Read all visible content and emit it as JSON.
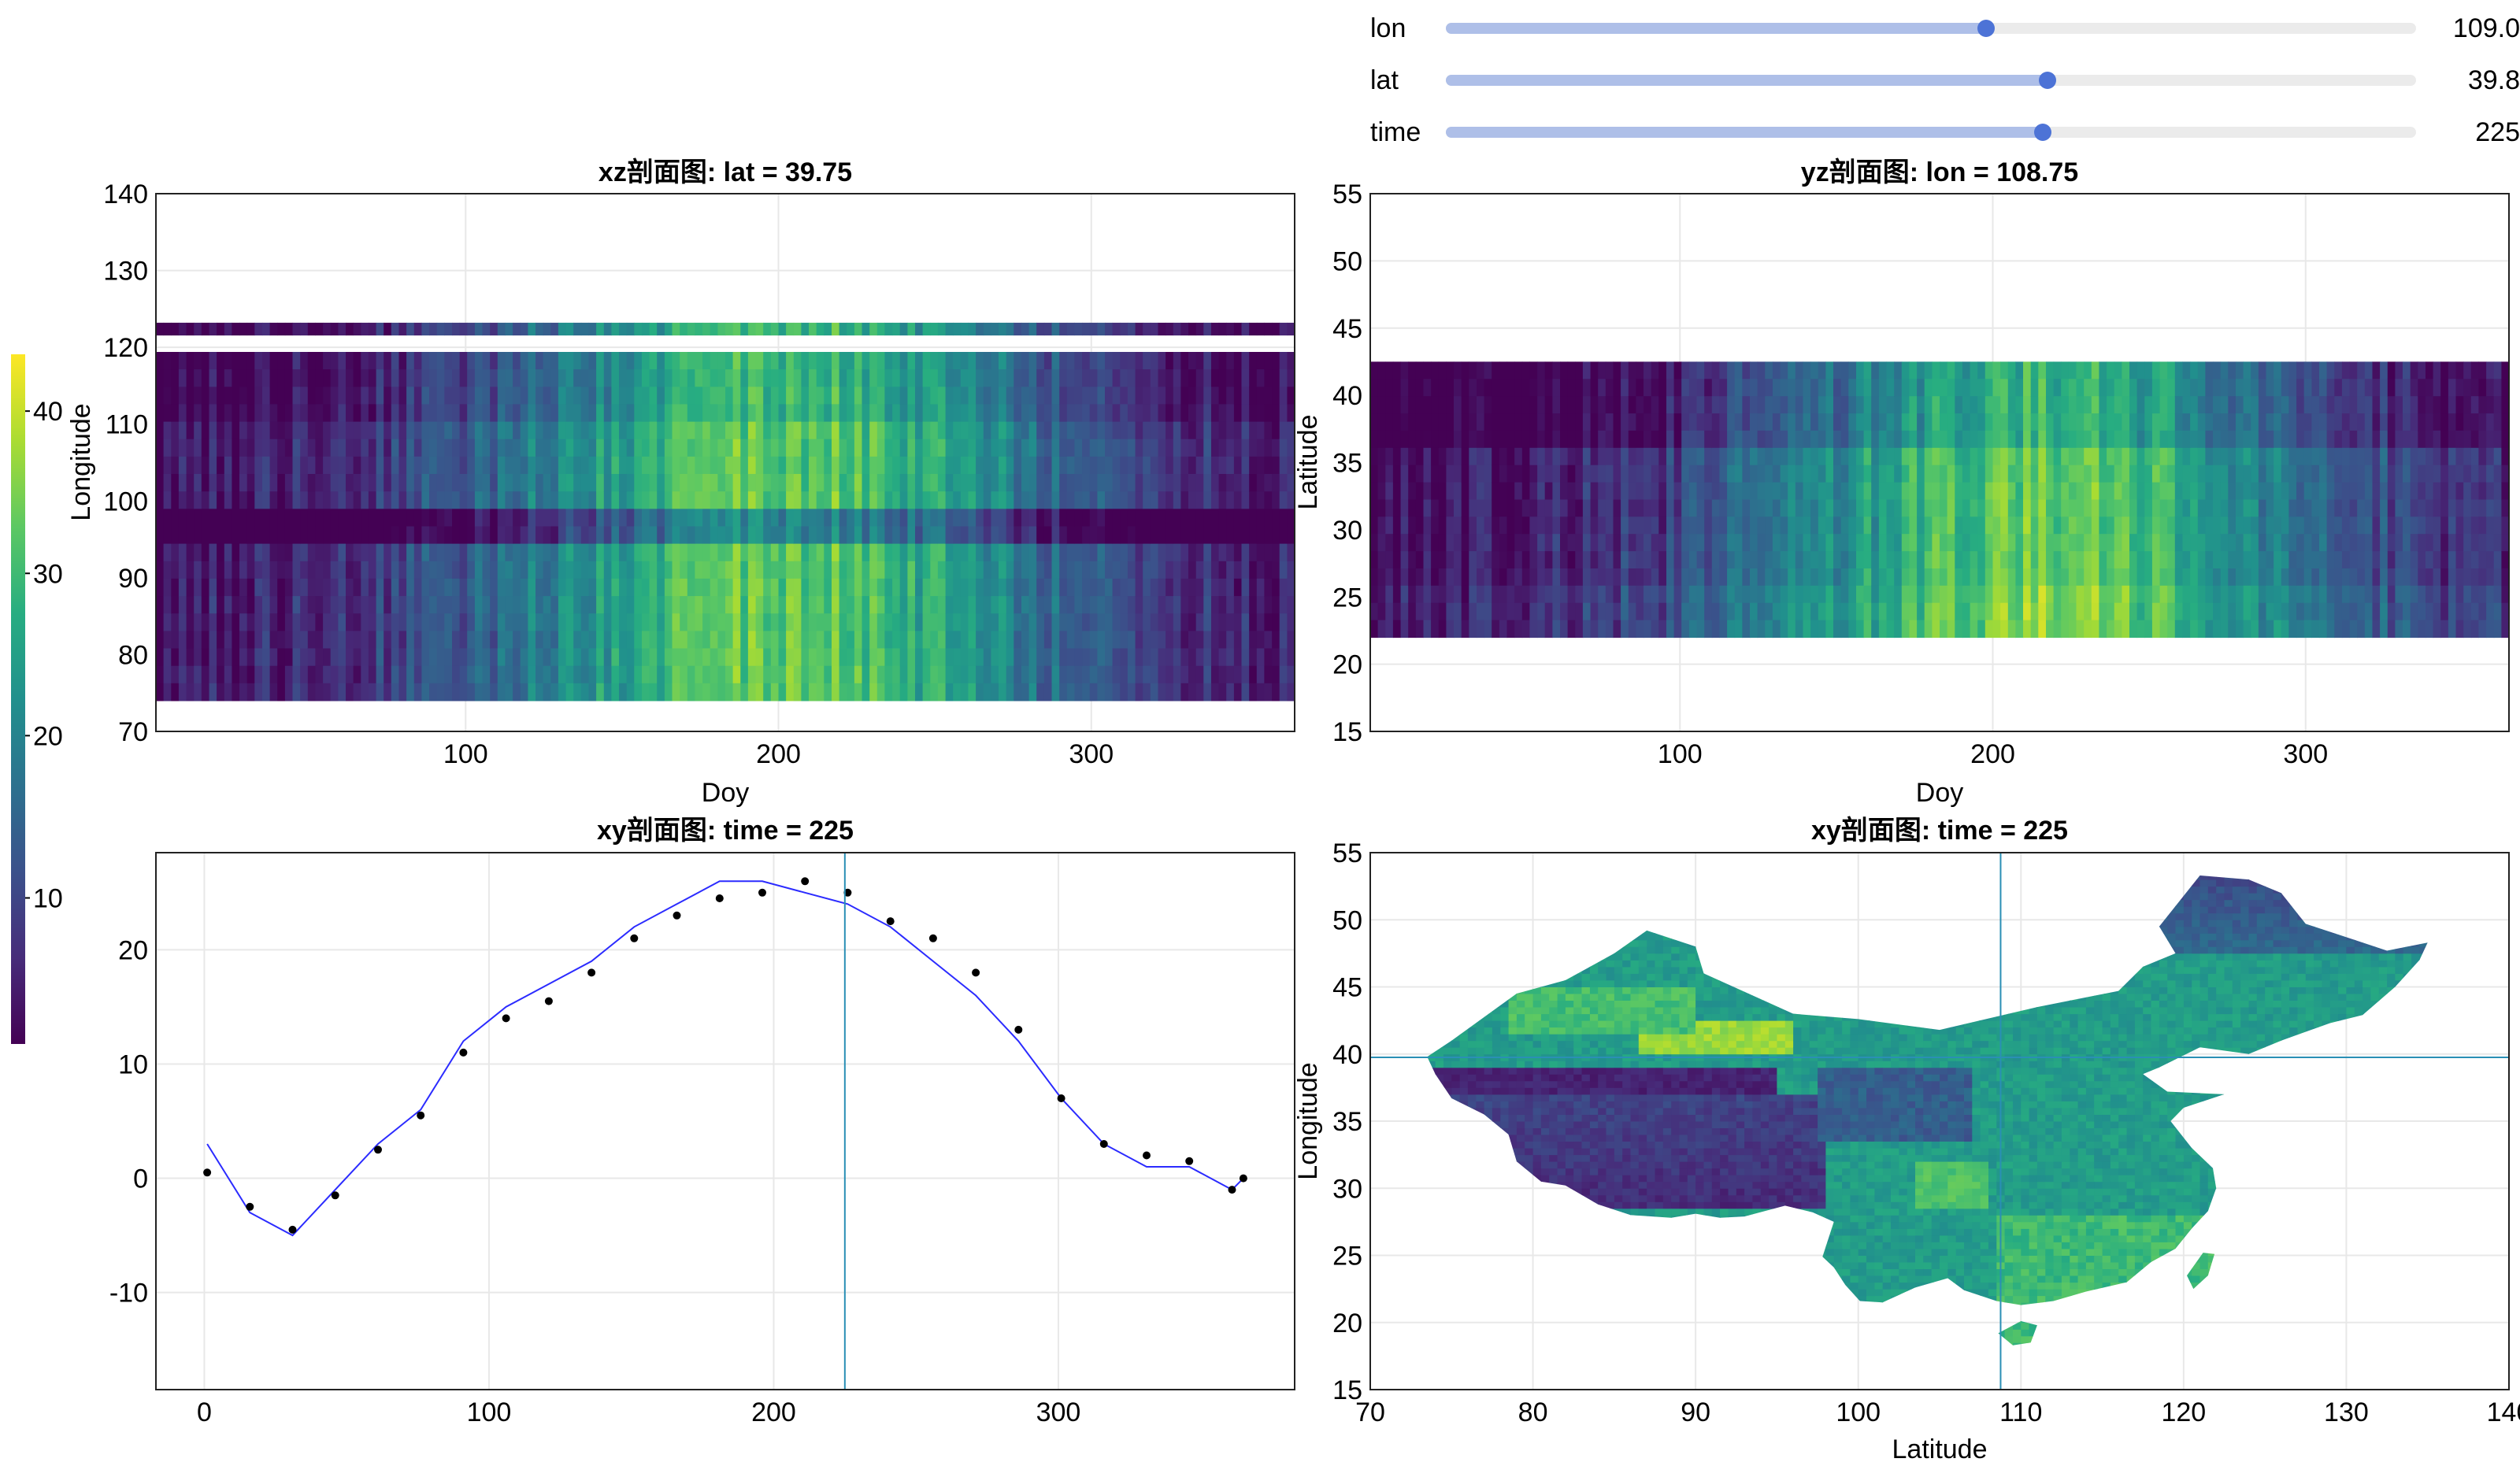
{
  "sliders": [
    {
      "label": "lon",
      "min": 70,
      "max": 140,
      "value": 109.0,
      "display": "109.0"
    },
    {
      "label": "lat",
      "min": 15,
      "max": 55,
      "value": 39.8,
      "display": "39.8"
    },
    {
      "label": "time",
      "min": 1,
      "max": 365,
      "value": 225,
      "display": "225"
    }
  ],
  "colors": {
    "viridis": [
      "#440154",
      "#472c7a",
      "#3b518b",
      "#2c718e",
      "#21908d",
      "#27ad81",
      "#5cc863",
      "#aadc32",
      "#fde725"
    ],
    "series_line": "#2b2bff",
    "series_points": "#000000",
    "crosshair": "#2a8fb5",
    "grid": "#e8e8e8"
  },
  "chart_data": [
    {
      "type": "heatmap",
      "title": "xz剖面图: lat = 39.75",
      "xlabel": "Doy",
      "ylabel": "Longitude",
      "xlim": [
        1,
        365
      ],
      "ylim": [
        70,
        140
      ],
      "xticks": [
        "100",
        "200",
        "300"
      ],
      "yticks": [
        "70",
        "80",
        "90",
        "100",
        "110",
        "120",
        "130",
        "140"
      ],
      "data_bands_y": [
        [
          74,
          119.4
        ],
        [
          121.6,
          123.2
        ]
      ],
      "warm_center_doy": 200
    },
    {
      "type": "heatmap",
      "title": "yz剖面图: lon = 108.75",
      "xlabel": "Doy",
      "ylabel": "Latitude",
      "xlim": [
        1,
        365
      ],
      "ylim": [
        15,
        55
      ],
      "xticks": [
        "100",
        "200",
        "300"
      ],
      "yticks": [
        "15",
        "20",
        "25",
        "30",
        "35",
        "40",
        "45",
        "50",
        "55"
      ],
      "data_bands_y": [
        [
          22,
          42.5
        ]
      ],
      "warm_center_doy": 215
    },
    {
      "type": "line",
      "title": "xy剖面图: time = 225",
      "xlim": [
        -17,
        383
      ],
      "ylim": [
        -18.5,
        28.5
      ],
      "xticks": [
        "0",
        "100",
        "200",
        "300"
      ],
      "yticks": [
        "-10",
        "0",
        "10",
        "20"
      ],
      "crosshair_x": 225,
      "series": [
        {
          "style": "line",
          "x": [
            1,
            16,
            31,
            46,
            61,
            76,
            91,
            106,
            121,
            136,
            151,
            166,
            181,
            196,
            211,
            226,
            241,
            256,
            271,
            286,
            301,
            316,
            331,
            346,
            361,
            365
          ],
          "y": [
            3,
            -3,
            -5,
            -1,
            3,
            6,
            12,
            15,
            17,
            19,
            22,
            24,
            26,
            26,
            25,
            24,
            22,
            19,
            16,
            12,
            7,
            3,
            1,
            1,
            -1,
            0
          ]
        },
        {
          "style": "scatter",
          "x": [
            1,
            16,
            31,
            46,
            61,
            76,
            91,
            106,
            121,
            136,
            151,
            166,
            181,
            196,
            211,
            226,
            241,
            256,
            271,
            286,
            301,
            316,
            331,
            346,
            361,
            365
          ],
          "y": [
            0.5,
            -2.5,
            -4.5,
            -1.5,
            2.5,
            5.5,
            11,
            14,
            15.5,
            18,
            21,
            23,
            24.5,
            25,
            26,
            25,
            22.5,
            21,
            18,
            13,
            7,
            3,
            2,
            1.5,
            -1,
            0
          ]
        }
      ]
    },
    {
      "type": "heatmap",
      "title": "xy剖面图: time = 225",
      "xlabel": "Latitude",
      "ylabel": "Longitude",
      "xlim": [
        70,
        140
      ],
      "ylim": [
        15,
        55
      ],
      "xticks": [
        "70",
        "80",
        "90",
        "100",
        "110",
        "120",
        "130",
        "140"
      ],
      "yticks": [
        "15",
        "20",
        "25",
        "30",
        "35",
        "40",
        "45",
        "50",
        "55"
      ],
      "crosshair": {
        "x": 108.75,
        "y": 39.75
      },
      "outline_lonlat": [
        [
          73.5,
          39.8
        ],
        [
          75,
          41
        ],
        [
          79,
          44.5
        ],
        [
          82,
          45.5
        ],
        [
          85,
          47.5
        ],
        [
          87,
          49.2
        ],
        [
          90,
          48
        ],
        [
          90.5,
          46
        ],
        [
          96,
          43
        ],
        [
          100,
          42.6
        ],
        [
          105,
          41.8
        ],
        [
          111,
          43.5
        ],
        [
          116,
          44.7
        ],
        [
          117.5,
          46.5
        ],
        [
          119.5,
          47.5
        ],
        [
          118.5,
          49.5
        ],
        [
          121,
          53.3
        ],
        [
          124,
          53
        ],
        [
          126,
          52
        ],
        [
          127.5,
          49.7
        ],
        [
          130.5,
          48.5
        ],
        [
          132.5,
          47.7
        ],
        [
          135,
          48.3
        ],
        [
          134.5,
          47
        ],
        [
          133,
          45
        ],
        [
          131,
          42.9
        ],
        [
          129,
          42.3
        ],
        [
          126,
          41
        ],
        [
          124,
          40
        ],
        [
          121,
          40.5
        ],
        [
          118.5,
          39
        ],
        [
          117.5,
          38.5
        ],
        [
          119,
          37.2
        ],
        [
          122.5,
          37
        ],
        [
          120,
          36
        ],
        [
          119.2,
          35
        ],
        [
          120.5,
          33
        ],
        [
          121.8,
          31.5
        ],
        [
          122,
          30
        ],
        [
          121.5,
          28.3
        ],
        [
          120.5,
          27
        ],
        [
          119.5,
          25.5
        ],
        [
          118,
          24.5
        ],
        [
          116.5,
          23
        ],
        [
          114,
          22.3
        ],
        [
          112,
          21.6
        ],
        [
          110,
          21.3
        ],
        [
          108.5,
          21.6
        ],
        [
          106.5,
          22.4
        ],
        [
          105.5,
          23.3
        ],
        [
          103.5,
          22.6
        ],
        [
          101.5,
          21.5
        ],
        [
          100.1,
          21.6
        ],
        [
          99.2,
          22.8
        ],
        [
          98.5,
          24.1
        ],
        [
          97.8,
          24.9
        ],
        [
          98.5,
          27.5
        ],
        [
          97.2,
          28.2
        ],
        [
          95.5,
          28.7
        ],
        [
          93,
          27.9
        ],
        [
          91.5,
          27.8
        ],
        [
          90,
          28.1
        ],
        [
          88.5,
          27.8
        ],
        [
          86,
          28
        ],
        [
          84,
          28.8
        ],
        [
          82,
          30.2
        ],
        [
          80.5,
          30.5
        ],
        [
          79,
          32
        ],
        [
          78.5,
          34
        ],
        [
          77,
          35.5
        ],
        [
          75,
          36.7
        ],
        [
          74,
          38.5
        ]
      ],
      "hainan_lonlat": [
        [
          108.6,
          19.2
        ],
        [
          109.5,
          18.3
        ],
        [
          110.6,
          18.5
        ],
        [
          111,
          19.8
        ],
        [
          110,
          20.1
        ]
      ],
      "taiwan_lonlat": [
        [
          120.6,
          22.5
        ],
        [
          121.5,
          23.5
        ],
        [
          121.9,
          25.1
        ],
        [
          121.2,
          25.2
        ],
        [
          120.2,
          23.5
        ]
      ]
    }
  ],
  "colorbar": {
    "label": "Longitude",
    "min": 1,
    "max": 43.5,
    "ticks": [
      10,
      20,
      30,
      40
    ],
    "tick_labels": [
      "10",
      "20",
      "30",
      "40"
    ]
  }
}
